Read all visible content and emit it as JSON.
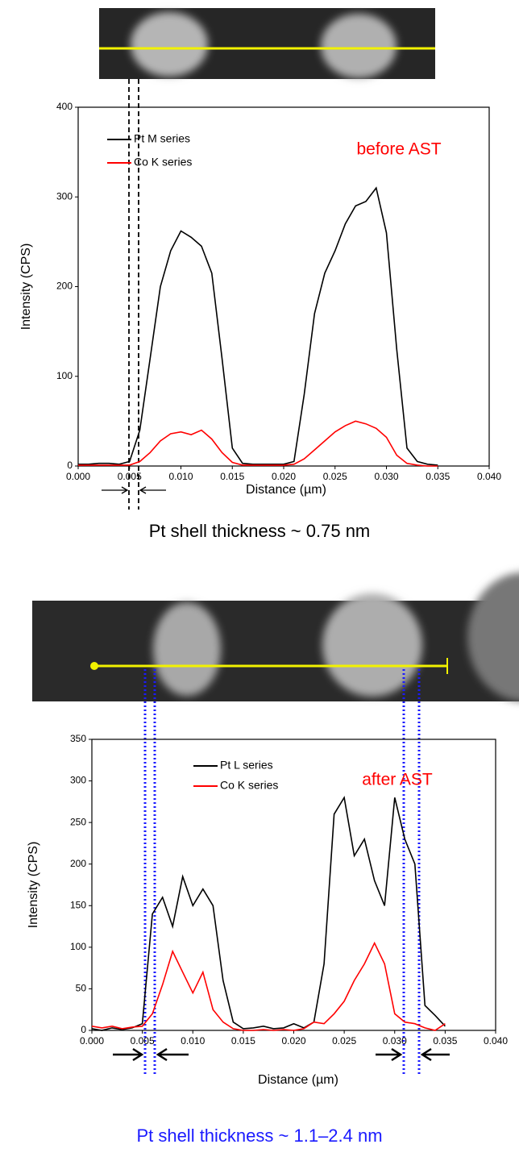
{
  "chart_data": [
    {
      "type": "line",
      "annotation": "before AST",
      "xlabel": "Distance (µm)",
      "ylabel": "Intensity (CPS)",
      "caption": "Pt shell thickness ~ 0.75 nm",
      "x": [
        0,
        0.001,
        0.002,
        0.003,
        0.004,
        0.005,
        0.006,
        0.007,
        0.008,
        0.009,
        0.01,
        0.011,
        0.012,
        0.013,
        0.014,
        0.015,
        0.016,
        0.017,
        0.018,
        0.019,
        0.02,
        0.021,
        0.022,
        0.023,
        0.024,
        0.025,
        0.026,
        0.027,
        0.028,
        0.029,
        0.03,
        0.031,
        0.032,
        0.033,
        0.034,
        0.035
      ],
      "series": [
        {
          "name": "Pt M series",
          "color": "#000000",
          "values": [
            2,
            2,
            3,
            3,
            2,
            5,
            40,
            120,
            200,
            240,
            262,
            255,
            245,
            215,
            120,
            20,
            3,
            2,
            2,
            2,
            2,
            5,
            80,
            170,
            215,
            240,
            270,
            290,
            295,
            310,
            260,
            130,
            20,
            5,
            2,
            1
          ]
        },
        {
          "name": "Co K series",
          "color": "#ff0000",
          "values": [
            1,
            1,
            1,
            1,
            1,
            1,
            5,
            15,
            28,
            36,
            38,
            35,
            40,
            30,
            15,
            4,
            1,
            1,
            1,
            1,
            1,
            2,
            8,
            18,
            28,
            38,
            45,
            50,
            47,
            42,
            32,
            12,
            3,
            1,
            0,
            0
          ]
        }
      ],
      "xlim": [
        0,
        0.04
      ],
      "ylim": [
        0,
        400
      ],
      "xticks": [
        {
          "value": 0,
          "label": "0.000"
        },
        {
          "value": 0.005,
          "label": "0.005"
        },
        {
          "value": 0.01,
          "label": "0.010"
        },
        {
          "value": 0.015,
          "label": "0.015"
        },
        {
          "value": 0.02,
          "label": "0.020"
        },
        {
          "value": 0.025,
          "label": "0.025"
        },
        {
          "value": 0.03,
          "label": "0.030"
        },
        {
          "value": 0.035,
          "label": "0.035"
        },
        {
          "value": 0.04,
          "label": "0.040"
        }
      ],
      "yticks": [
        0,
        100,
        200,
        300,
        400
      ]
    },
    {
      "type": "line",
      "annotation": "after AST",
      "xlabel": "Distance (µm)",
      "ylabel": "Intensity (CPS)",
      "caption": "Pt shell thickness ~ 1.1–2.4 nm",
      "x": [
        0,
        0.001,
        0.002,
        0.003,
        0.004,
        0.005,
        0.006,
        0.007,
        0.008,
        0.009,
        0.01,
        0.011,
        0.012,
        0.013,
        0.014,
        0.015,
        0.016,
        0.017,
        0.018,
        0.019,
        0.02,
        0.021,
        0.022,
        0.023,
        0.024,
        0.025,
        0.026,
        0.027,
        0.028,
        0.029,
        0.03,
        0.031,
        0.032,
        0.033,
        0.034,
        0.035
      ],
      "series": [
        {
          "name": "Pt L series",
          "color": "#000000",
          "values": [
            2,
            0,
            3,
            1,
            3,
            8,
            140,
            160,
            125,
            185,
            150,
            170,
            150,
            60,
            10,
            2,
            3,
            5,
            2,
            3,
            8,
            3,
            10,
            80,
            260,
            280,
            210,
            230,
            180,
            150,
            280,
            230,
            200,
            30,
            18,
            5
          ]
        },
        {
          "name": "Co K series",
          "color": "#ff0000",
          "values": [
            5,
            3,
            5,
            2,
            4,
            5,
            20,
            55,
            95,
            70,
            45,
            70,
            25,
            10,
            2,
            0,
            0,
            1,
            0,
            1,
            0,
            2,
            10,
            8,
            20,
            35,
            60,
            80,
            105,
            80,
            20,
            10,
            8,
            3,
            0,
            8
          ]
        }
      ],
      "xlim": [
        0,
        0.04
      ],
      "ylim": [
        0,
        350
      ],
      "xticks": [
        {
          "value": 0,
          "label": "0.000"
        },
        {
          "value": 0.005,
          "label": "0.005"
        },
        {
          "value": 0.01,
          "label": "0.010"
        },
        {
          "value": 0.015,
          "label": "0.015"
        },
        {
          "value": 0.02,
          "label": "0.020"
        },
        {
          "value": 0.025,
          "label": "0.025"
        },
        {
          "value": 0.03,
          "label": "0.030"
        },
        {
          "value": 0.035,
          "label": "0.035"
        },
        {
          "value": 0.04,
          "label": "0.040"
        }
      ],
      "yticks": [
        0,
        50,
        100,
        150,
        200,
        250,
        300,
        350
      ]
    }
  ]
}
